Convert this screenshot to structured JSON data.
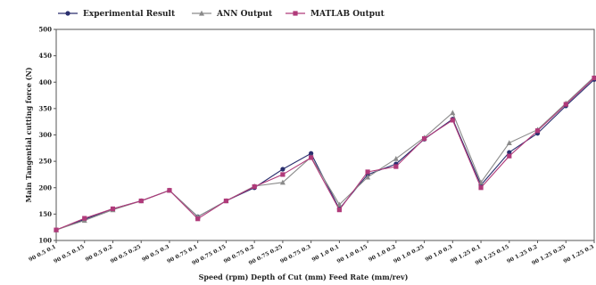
{
  "chart_data": {
    "type": "line",
    "title": "",
    "xlabel": "Speed (rpm)  Depth of Cut (mm)  Feed Rate (mm/rev)",
    "ylabel": "Main Tangential cutting force (N)",
    "ylim": [
      100,
      500
    ],
    "yticks": [
      100,
      150,
      200,
      250,
      300,
      350,
      400,
      450,
      500
    ],
    "legend_position": "top",
    "grid": false,
    "categories": [
      "90 0.5 0.1",
      "90 0.5 0.15",
      "90 0.5 0.2",
      "90 0.5 0.25",
      "90 0.5 0.3",
      "90 0.75 0.1",
      "90 0.75 0.15",
      "90 0.75 0.2",
      "90 0.75 0.25",
      "90 0.75 0.3",
      "90 1.0 0.1",
      "90 1.0 0.15",
      "90 1.0 0.2",
      "90 1.0 0.25",
      "90 1.0 0.3",
      "90 1.25 0.1",
      "90 1.25 0.15",
      "90 1.25 0.2",
      "90 1.25 0.25",
      "90 1.25 0.3"
    ],
    "series": [
      {
        "name": "Experimental Result",
        "color": "#2a2f6e",
        "marker": "circle",
        "values": [
          120,
          140,
          160,
          175,
          195,
          145,
          175,
          200,
          235,
          265,
          160,
          225,
          245,
          292,
          330,
          205,
          267,
          303,
          355,
          405
        ]
      },
      {
        "name": "ANN Output",
        "color": "#8a8a8a",
        "marker": "triangle",
        "values": [
          120,
          138,
          158,
          175,
          195,
          145,
          175,
          203,
          210,
          258,
          168,
          220,
          255,
          295,
          342,
          210,
          285,
          310,
          360,
          410
        ]
      },
      {
        "name": "MATLAB Output",
        "color": "#b03a7a",
        "marker": "square",
        "values": [
          120,
          142,
          160,
          175,
          195,
          141,
          175,
          202,
          225,
          257,
          158,
          230,
          240,
          293,
          328,
          200,
          260,
          308,
          358,
          408
        ]
      }
    ]
  }
}
